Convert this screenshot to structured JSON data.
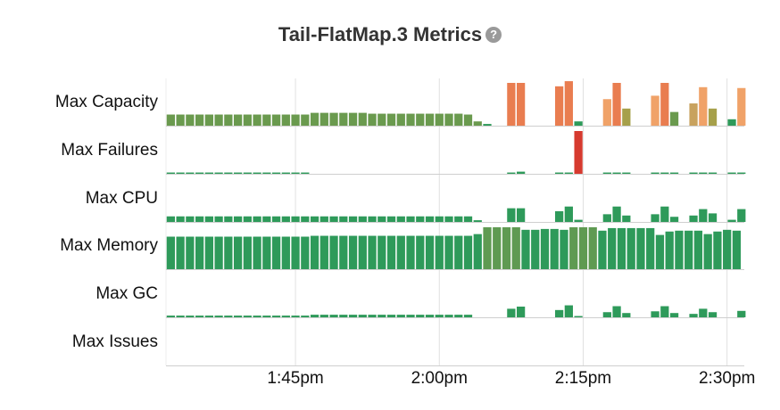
{
  "title": "Tail-FlatMap.3 Metrics",
  "help_icon": "question-circle-icon",
  "chart_data": {
    "type": "bar",
    "x_ticks": [
      "1:45pm",
      "2:00pm",
      "2:15pm",
      "2:30pm"
    ],
    "x_tick_minutes": [
      45,
      60,
      75,
      90
    ],
    "x_range_minutes": [
      31.5,
      91.8
    ],
    "grid": "vertical",
    "rows": [
      {
        "name": "Max Capacity",
        "max": 1,
        "values": [
          {
            "x": 32,
            "v": 0.26,
            "c": "#6a9a4e"
          },
          {
            "x": 33,
            "v": 0.26,
            "c": "#6a9a4e"
          },
          {
            "x": 34,
            "v": 0.26,
            "c": "#6a9a4e"
          },
          {
            "x": 35,
            "v": 0.26,
            "c": "#6a9a4e"
          },
          {
            "x": 36,
            "v": 0.26,
            "c": "#6a9a4e"
          },
          {
            "x": 37,
            "v": 0.26,
            "c": "#6a9a4e"
          },
          {
            "x": 38,
            "v": 0.26,
            "c": "#6a9a4e"
          },
          {
            "x": 39,
            "v": 0.26,
            "c": "#6a9a4e"
          },
          {
            "x": 40,
            "v": 0.26,
            "c": "#6a9a4e"
          },
          {
            "x": 41,
            "v": 0.26,
            "c": "#6a9a4e"
          },
          {
            "x": 42,
            "v": 0.26,
            "c": "#6a9a4e"
          },
          {
            "x": 43,
            "v": 0.26,
            "c": "#6a9a4e"
          },
          {
            "x": 44,
            "v": 0.26,
            "c": "#6a9a4e"
          },
          {
            "x": 45,
            "v": 0.26,
            "c": "#6a9a4e"
          },
          {
            "x": 46,
            "v": 0.26,
            "c": "#6a9a4e"
          },
          {
            "x": 47,
            "v": 0.3,
            "c": "#6a9a4e"
          },
          {
            "x": 48,
            "v": 0.3,
            "c": "#6a9a4e"
          },
          {
            "x": 49,
            "v": 0.3,
            "c": "#6a9a4e"
          },
          {
            "x": 50,
            "v": 0.3,
            "c": "#6a9a4e"
          },
          {
            "x": 51,
            "v": 0.3,
            "c": "#6a9a4e"
          },
          {
            "x": 52,
            "v": 0.3,
            "c": "#6a9a4e"
          },
          {
            "x": 53,
            "v": 0.28,
            "c": "#6a9a4e"
          },
          {
            "x": 54,
            "v": 0.28,
            "c": "#6a9a4e"
          },
          {
            "x": 55,
            "v": 0.28,
            "c": "#6a9a4e"
          },
          {
            "x": 56,
            "v": 0.28,
            "c": "#6a9a4e"
          },
          {
            "x": 57,
            "v": 0.28,
            "c": "#6a9a4e"
          },
          {
            "x": 58,
            "v": 0.28,
            "c": "#6a9a4e"
          },
          {
            "x": 59,
            "v": 0.28,
            "c": "#6a9a4e"
          },
          {
            "x": 60,
            "v": 0.28,
            "c": "#6a9a4e"
          },
          {
            "x": 61,
            "v": 0.28,
            "c": "#6a9a4e"
          },
          {
            "x": 62,
            "v": 0.28,
            "c": "#6a9a4e"
          },
          {
            "x": 63,
            "v": 0.26,
            "c": "#6a9a4e"
          },
          {
            "x": 64,
            "v": 0.1,
            "c": "#6a9a4e"
          },
          {
            "x": 65,
            "v": 0.04,
            "c": "#2e9a5a"
          },
          {
            "x": 67.5,
            "v": 1.0,
            "c": "#e97d50"
          },
          {
            "x": 68.5,
            "v": 1.0,
            "c": "#e97d50"
          },
          {
            "x": 72.5,
            "v": 0.92,
            "c": "#e97d50"
          },
          {
            "x": 73.5,
            "v": 1.04,
            "c": "#e97d50"
          },
          {
            "x": 74.5,
            "v": 0.1,
            "c": "#2e9a5a"
          },
          {
            "x": 77.5,
            "v": 0.62,
            "c": "#f0a268"
          },
          {
            "x": 78.5,
            "v": 1.0,
            "c": "#e97d50"
          },
          {
            "x": 79.5,
            "v": 0.4,
            "c": "#a6a04a"
          },
          {
            "x": 82.5,
            "v": 0.7,
            "c": "#f0a268"
          },
          {
            "x": 83.5,
            "v": 1.0,
            "c": "#e97d50"
          },
          {
            "x": 84.5,
            "v": 0.32,
            "c": "#6a9a4e"
          },
          {
            "x": 86.5,
            "v": 0.52,
            "c": "#c8a25e"
          },
          {
            "x": 87.5,
            "v": 0.9,
            "c": "#f0a268"
          },
          {
            "x": 88.5,
            "v": 0.4,
            "c": "#a6a04a"
          },
          {
            "x": 90.5,
            "v": 0.15,
            "c": "#2e9a5a"
          },
          {
            "x": 91.5,
            "v": 0.88,
            "c": "#f0a268"
          }
        ]
      },
      {
        "name": "Max Failures",
        "max": 1,
        "values": [
          {
            "x": 32,
            "v": 0.03
          },
          {
            "x": 33,
            "v": 0.03
          },
          {
            "x": 34,
            "v": 0.03
          },
          {
            "x": 35,
            "v": 0.03
          },
          {
            "x": 36,
            "v": 0.03
          },
          {
            "x": 37,
            "v": 0.03
          },
          {
            "x": 38,
            "v": 0.03
          },
          {
            "x": 39,
            "v": 0.03
          },
          {
            "x": 40,
            "v": 0.03
          },
          {
            "x": 41,
            "v": 0.03
          },
          {
            "x": 42,
            "v": 0.03
          },
          {
            "x": 43,
            "v": 0.03
          },
          {
            "x": 44,
            "v": 0.03
          },
          {
            "x": 45,
            "v": 0.03
          },
          {
            "x": 46,
            "v": 0.03
          },
          {
            "x": 67.5,
            "v": 0.03
          },
          {
            "x": 68.5,
            "v": 0.05
          },
          {
            "x": 72.5,
            "v": 0.03
          },
          {
            "x": 73.5,
            "v": 0.03
          },
          {
            "x": 74.5,
            "v": 1.0,
            "c": "#d63a2f"
          },
          {
            "x": 77.5,
            "v": 0.03
          },
          {
            "x": 78.5,
            "v": 0.03
          },
          {
            "x": 79.5,
            "v": 0.03
          },
          {
            "x": 82.5,
            "v": 0.03
          },
          {
            "x": 83.5,
            "v": 0.03
          },
          {
            "x": 84.5,
            "v": 0.03
          },
          {
            "x": 86.5,
            "v": 0.03
          },
          {
            "x": 87.5,
            "v": 0.03
          },
          {
            "x": 88.5,
            "v": 0.03
          },
          {
            "x": 90.5,
            "v": 0.03
          },
          {
            "x": 91.5,
            "v": 0.03
          }
        ]
      },
      {
        "name": "Max CPU",
        "max": 1,
        "values": [
          {
            "x": 32,
            "v": 0.13
          },
          {
            "x": 33,
            "v": 0.13
          },
          {
            "x": 34,
            "v": 0.13
          },
          {
            "x": 35,
            "v": 0.13
          },
          {
            "x": 36,
            "v": 0.13
          },
          {
            "x": 37,
            "v": 0.13
          },
          {
            "x": 38,
            "v": 0.13
          },
          {
            "x": 39,
            "v": 0.13
          },
          {
            "x": 40,
            "v": 0.13
          },
          {
            "x": 41,
            "v": 0.13
          },
          {
            "x": 42,
            "v": 0.13
          },
          {
            "x": 43,
            "v": 0.13
          },
          {
            "x": 44,
            "v": 0.13
          },
          {
            "x": 45,
            "v": 0.13
          },
          {
            "x": 46,
            "v": 0.13
          },
          {
            "x": 47,
            "v": 0.13
          },
          {
            "x": 48,
            "v": 0.13
          },
          {
            "x": 49,
            "v": 0.13
          },
          {
            "x": 50,
            "v": 0.13
          },
          {
            "x": 51,
            "v": 0.13
          },
          {
            "x": 52,
            "v": 0.13
          },
          {
            "x": 53,
            "v": 0.13
          },
          {
            "x": 54,
            "v": 0.13
          },
          {
            "x": 55,
            "v": 0.13
          },
          {
            "x": 56,
            "v": 0.13
          },
          {
            "x": 57,
            "v": 0.13
          },
          {
            "x": 58,
            "v": 0.13
          },
          {
            "x": 59,
            "v": 0.13
          },
          {
            "x": 60,
            "v": 0.13
          },
          {
            "x": 61,
            "v": 0.13
          },
          {
            "x": 62,
            "v": 0.13
          },
          {
            "x": 63,
            "v": 0.13
          },
          {
            "x": 64,
            "v": 0.04
          },
          {
            "x": 67.5,
            "v": 0.32
          },
          {
            "x": 68.5,
            "v": 0.32
          },
          {
            "x": 72.5,
            "v": 0.25
          },
          {
            "x": 73.5,
            "v": 0.36
          },
          {
            "x": 74.5,
            "v": 0.05
          },
          {
            "x": 77.5,
            "v": 0.18
          },
          {
            "x": 78.5,
            "v": 0.36
          },
          {
            "x": 79.5,
            "v": 0.15
          },
          {
            "x": 82.5,
            "v": 0.18
          },
          {
            "x": 83.5,
            "v": 0.36
          },
          {
            "x": 84.5,
            "v": 0.12
          },
          {
            "x": 86.5,
            "v": 0.15
          },
          {
            "x": 87.5,
            "v": 0.3
          },
          {
            "x": 88.5,
            "v": 0.2
          },
          {
            "x": 90.5,
            "v": 0.05
          },
          {
            "x": 91.5,
            "v": 0.3
          }
        ]
      },
      {
        "name": "Max Memory",
        "max": 1,
        "values": [
          {
            "x": 32,
            "v": 0.76
          },
          {
            "x": 33,
            "v": 0.76
          },
          {
            "x": 34,
            "v": 0.76
          },
          {
            "x": 35,
            "v": 0.76
          },
          {
            "x": 36,
            "v": 0.76
          },
          {
            "x": 37,
            "v": 0.76
          },
          {
            "x": 38,
            "v": 0.76
          },
          {
            "x": 39,
            "v": 0.76
          },
          {
            "x": 40,
            "v": 0.76
          },
          {
            "x": 41,
            "v": 0.76
          },
          {
            "x": 42,
            "v": 0.76
          },
          {
            "x": 43,
            "v": 0.76
          },
          {
            "x": 44,
            "v": 0.76
          },
          {
            "x": 45,
            "v": 0.76
          },
          {
            "x": 46,
            "v": 0.76
          },
          {
            "x": 47,
            "v": 0.78
          },
          {
            "x": 48,
            "v": 0.78
          },
          {
            "x": 49,
            "v": 0.78
          },
          {
            "x": 50,
            "v": 0.78
          },
          {
            "x": 51,
            "v": 0.78
          },
          {
            "x": 52,
            "v": 0.78
          },
          {
            "x": 53,
            "v": 0.78
          },
          {
            "x": 54,
            "v": 0.78
          },
          {
            "x": 55,
            "v": 0.78
          },
          {
            "x": 56,
            "v": 0.78
          },
          {
            "x": 57,
            "v": 0.78
          },
          {
            "x": 58,
            "v": 0.78
          },
          {
            "x": 59,
            "v": 0.78
          },
          {
            "x": 60,
            "v": 0.78
          },
          {
            "x": 61,
            "v": 0.78
          },
          {
            "x": 62,
            "v": 0.78
          },
          {
            "x": 63,
            "v": 0.78
          },
          {
            "x": 64,
            "v": 0.82
          },
          {
            "x": 65,
            "v": 0.98,
            "c": "#5f9a52"
          },
          {
            "x": 66,
            "v": 0.98,
            "c": "#5f9a52"
          },
          {
            "x": 67,
            "v": 0.98,
            "c": "#5f9a52"
          },
          {
            "x": 68,
            "v": 0.98,
            "c": "#5f9a52"
          },
          {
            "x": 69,
            "v": 0.92
          },
          {
            "x": 70,
            "v": 0.92
          },
          {
            "x": 71,
            "v": 0.94
          },
          {
            "x": 72,
            "v": 0.94
          },
          {
            "x": 73,
            "v": 0.92
          },
          {
            "x": 74,
            "v": 0.98,
            "c": "#5f9a52"
          },
          {
            "x": 75,
            "v": 0.98,
            "c": "#5f9a52"
          },
          {
            "x": 76,
            "v": 0.98,
            "c": "#5f9a52"
          },
          {
            "x": 77,
            "v": 0.9
          },
          {
            "x": 78,
            "v": 0.96
          },
          {
            "x": 79,
            "v": 0.96
          },
          {
            "x": 80,
            "v": 0.96
          },
          {
            "x": 81,
            "v": 0.96
          },
          {
            "x": 82,
            "v": 0.96
          },
          {
            "x": 83,
            "v": 0.8
          },
          {
            "x": 84,
            "v": 0.88
          },
          {
            "x": 85,
            "v": 0.9
          },
          {
            "x": 86,
            "v": 0.9
          },
          {
            "x": 87,
            "v": 0.9
          },
          {
            "x": 88,
            "v": 0.82
          },
          {
            "x": 89,
            "v": 0.88
          },
          {
            "x": 90,
            "v": 0.92
          },
          {
            "x": 91,
            "v": 0.9
          }
        ]
      },
      {
        "name": "Max GC",
        "max": 1,
        "values": [
          {
            "x": 32,
            "v": 0.04
          },
          {
            "x": 33,
            "v": 0.04
          },
          {
            "x": 34,
            "v": 0.04
          },
          {
            "x": 35,
            "v": 0.04
          },
          {
            "x": 36,
            "v": 0.04
          },
          {
            "x": 37,
            "v": 0.04
          },
          {
            "x": 38,
            "v": 0.04
          },
          {
            "x": 39,
            "v": 0.04
          },
          {
            "x": 40,
            "v": 0.04
          },
          {
            "x": 41,
            "v": 0.04
          },
          {
            "x": 42,
            "v": 0.04
          },
          {
            "x": 43,
            "v": 0.04
          },
          {
            "x": 44,
            "v": 0.04
          },
          {
            "x": 45,
            "v": 0.04
          },
          {
            "x": 46,
            "v": 0.04
          },
          {
            "x": 47,
            "v": 0.06
          },
          {
            "x": 48,
            "v": 0.06
          },
          {
            "x": 49,
            "v": 0.06
          },
          {
            "x": 50,
            "v": 0.06
          },
          {
            "x": 51,
            "v": 0.06
          },
          {
            "x": 52,
            "v": 0.06
          },
          {
            "x": 53,
            "v": 0.06
          },
          {
            "x": 54,
            "v": 0.06
          },
          {
            "x": 55,
            "v": 0.06
          },
          {
            "x": 56,
            "v": 0.06
          },
          {
            "x": 57,
            "v": 0.06
          },
          {
            "x": 58,
            "v": 0.06
          },
          {
            "x": 59,
            "v": 0.06
          },
          {
            "x": 60,
            "v": 0.06
          },
          {
            "x": 61,
            "v": 0.06
          },
          {
            "x": 62,
            "v": 0.06
          },
          {
            "x": 63,
            "v": 0.06
          },
          {
            "x": 67.5,
            "v": 0.2
          },
          {
            "x": 68.5,
            "v": 0.25
          },
          {
            "x": 72.5,
            "v": 0.17
          },
          {
            "x": 73.5,
            "v": 0.28
          },
          {
            "x": 74.5,
            "v": 0.03
          },
          {
            "x": 77.5,
            "v": 0.12
          },
          {
            "x": 78.5,
            "v": 0.26
          },
          {
            "x": 79.5,
            "v": 0.1
          },
          {
            "x": 82.5,
            "v": 0.14
          },
          {
            "x": 83.5,
            "v": 0.26
          },
          {
            "x": 84.5,
            "v": 0.1
          },
          {
            "x": 86.5,
            "v": 0.08
          },
          {
            "x": 87.5,
            "v": 0.2
          },
          {
            "x": 88.5,
            "v": 0.12
          },
          {
            "x": 91.5,
            "v": 0.15
          }
        ]
      },
      {
        "name": "Max Issues",
        "max": 1,
        "values": []
      }
    ]
  }
}
